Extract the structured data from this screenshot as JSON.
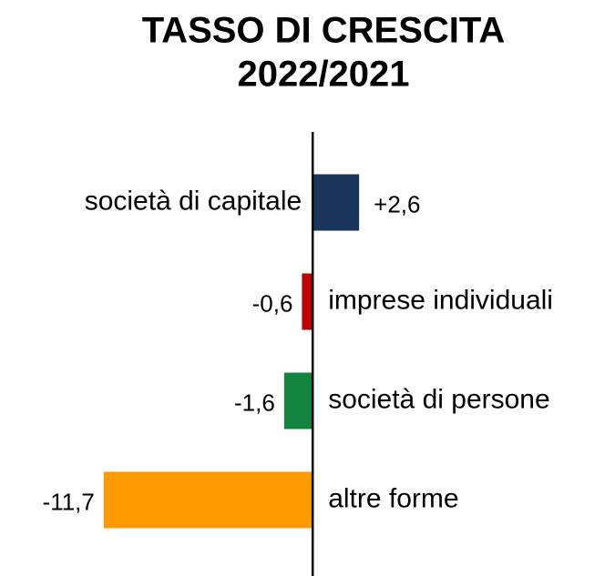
{
  "chart_data": {
    "type": "bar",
    "orientation": "horizontal",
    "title": [
      "TASSO DI CRESCITA",
      "2022/2021"
    ],
    "categories": [
      "società di capitale",
      "imprese individuali",
      "società di persone",
      "altre forme"
    ],
    "values": [
      2.6,
      -0.6,
      -1.6,
      -11.7
    ],
    "value_labels": [
      "+2,6",
      "-0,6",
      "-1,6",
      "-11,7"
    ],
    "colors": [
      "#1b365d",
      "#c00000",
      "#13843f",
      "#ff9900"
    ],
    "xlim": [
      -12,
      3
    ]
  }
}
